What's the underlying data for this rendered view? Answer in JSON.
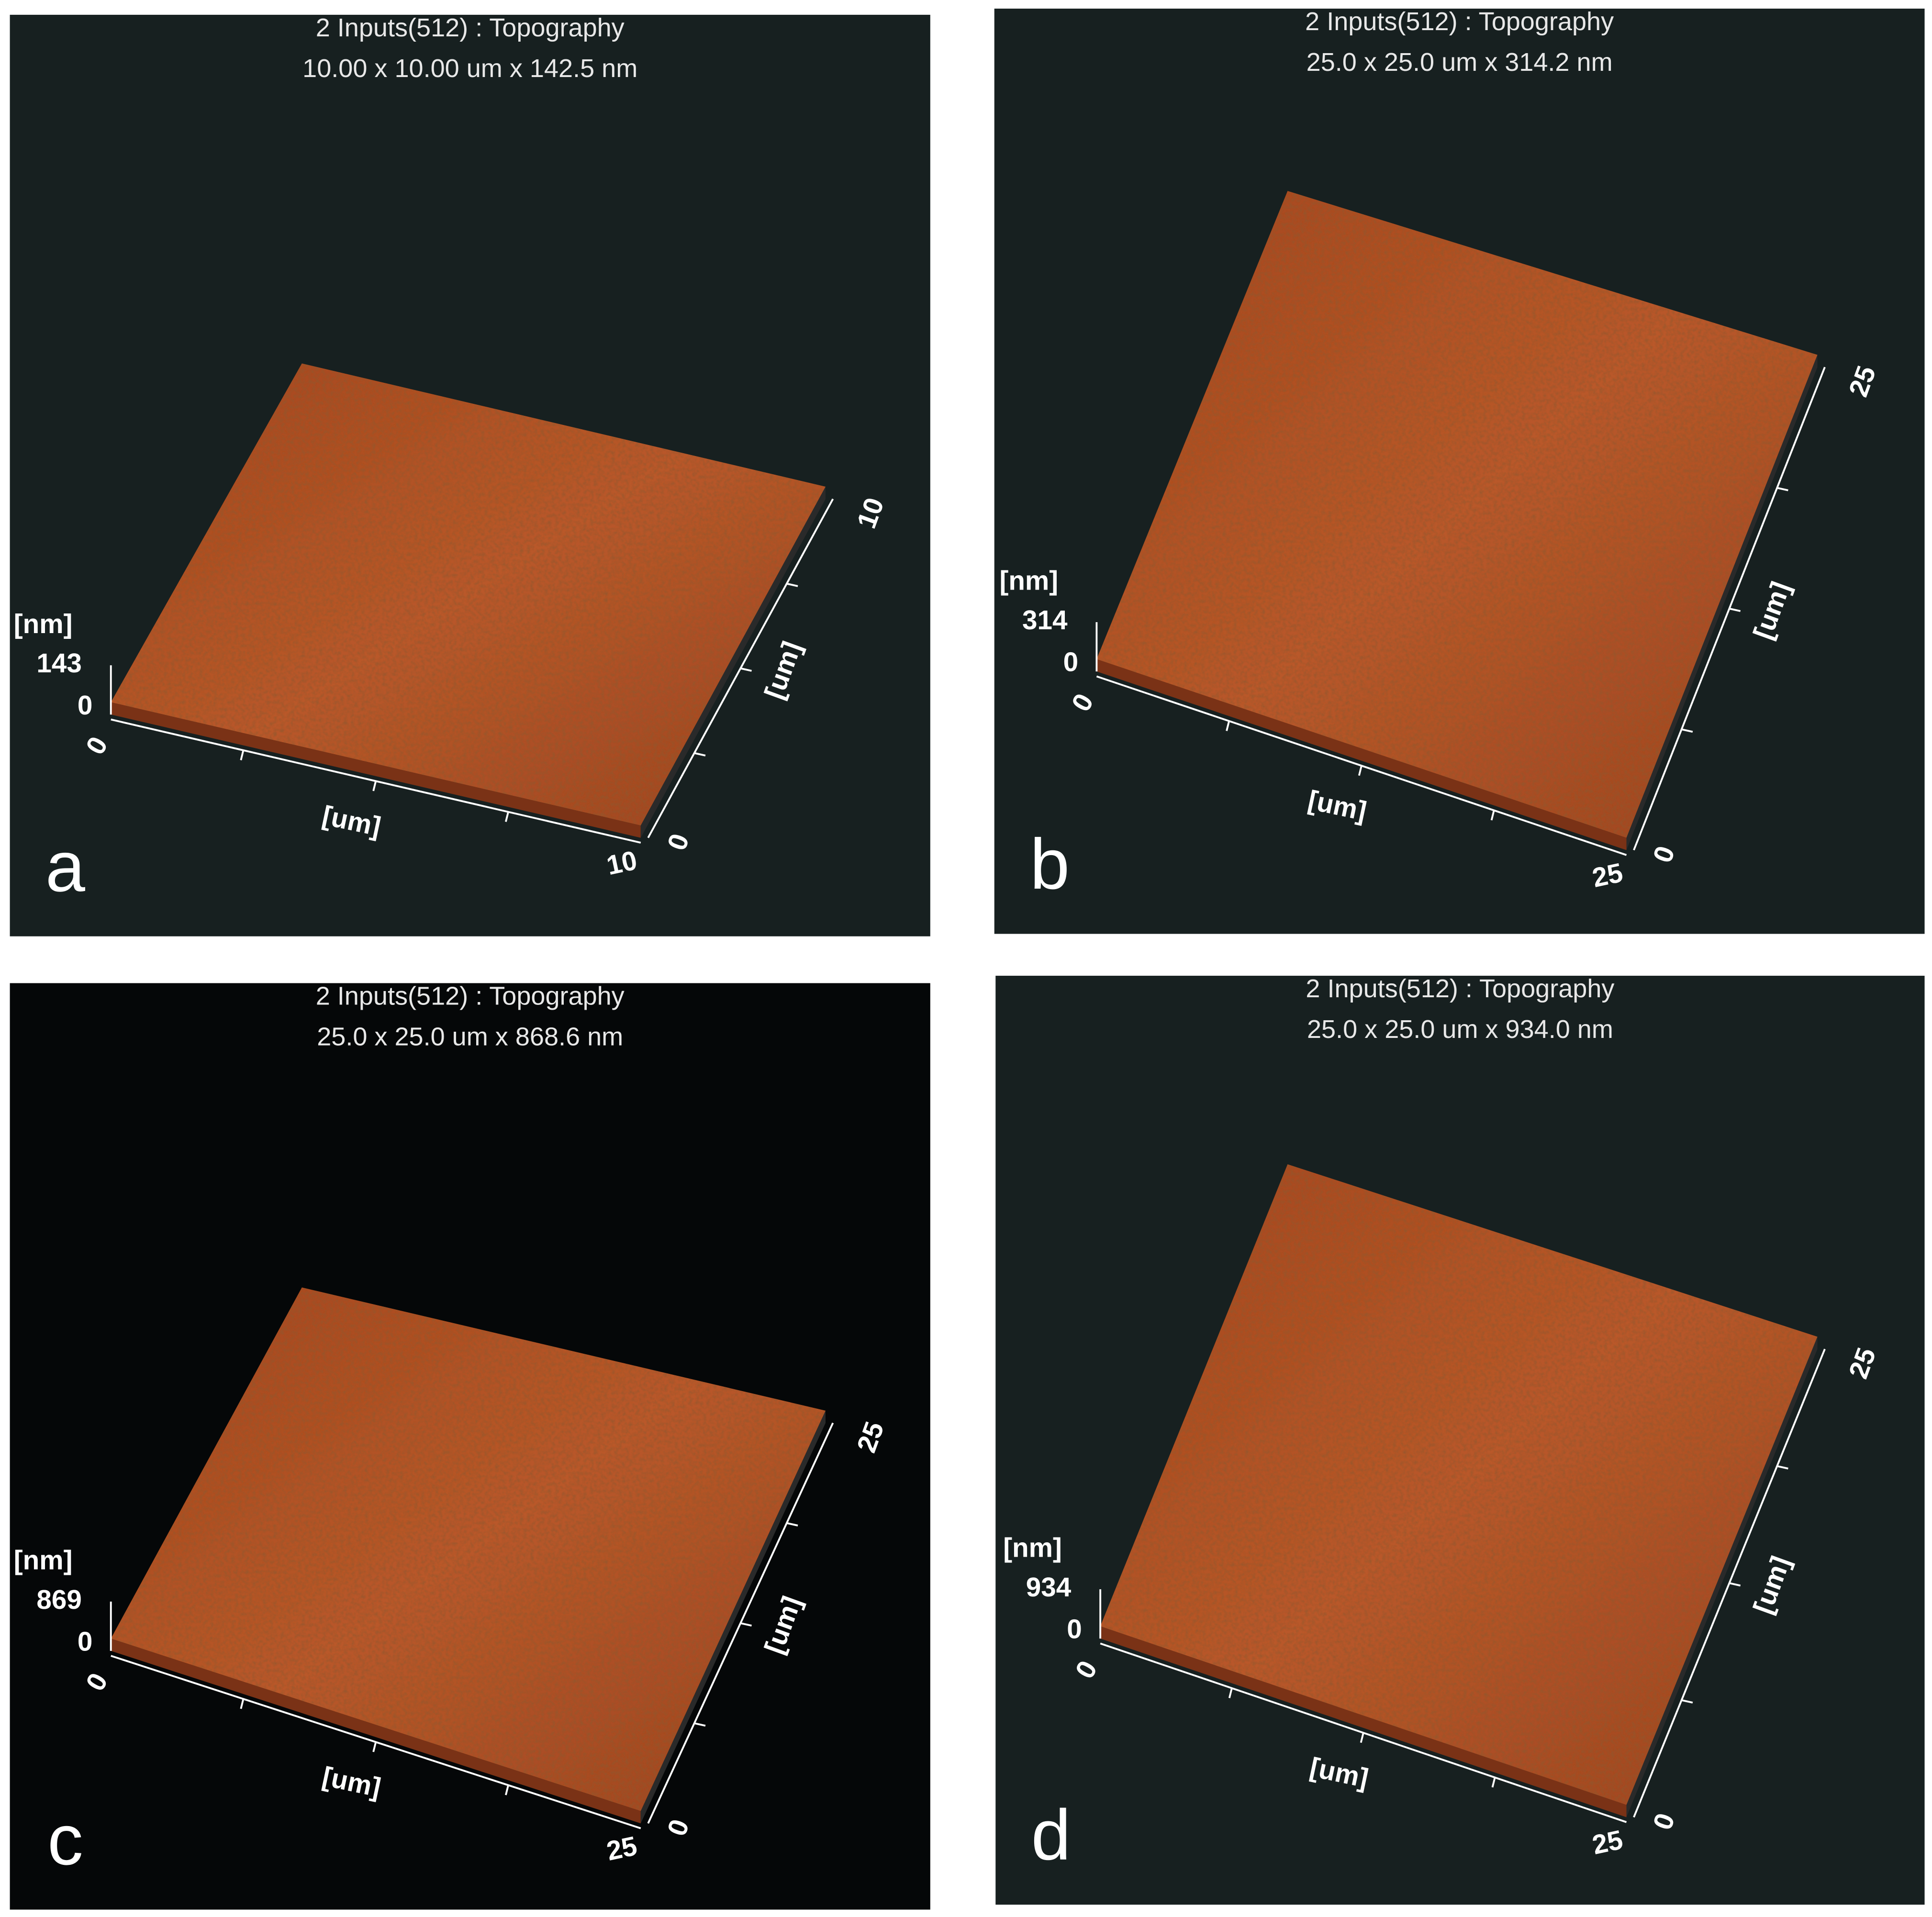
{
  "panels": [
    {
      "letter": "a",
      "title": "2 Inputs(512) : Topography",
      "subtitle": "10.00 x 10.00 um x 142.5 nm",
      "z_unit": "[nm]",
      "z_max": "143",
      "z_min": "0",
      "x_label": "[um]",
      "x_start": "0",
      "x_end": "10",
      "y_label": "[um]",
      "y_start": "0",
      "y_end": "10"
    },
    {
      "letter": "b",
      "title": "2 Inputs(512) : Topography",
      "subtitle": "25.0 x 25.0 um x 314.2 nm",
      "z_unit": "[nm]",
      "z_max": "314",
      "z_min": "0",
      "x_label": "[um]",
      "x_start": "0",
      "x_end": "25",
      "y_label": "[um]",
      "y_start": "0",
      "y_end": "25"
    },
    {
      "letter": "c",
      "title": "2 Inputs(512) : Topography",
      "subtitle": "25.0 x 25.0 um x 868.6 nm",
      "z_unit": "[nm]",
      "z_max": "869",
      "z_min": "0",
      "x_label": "[um]",
      "x_start": "0",
      "x_end": "25",
      "y_label": "[um]",
      "y_start": "0",
      "y_end": "25"
    },
    {
      "letter": "d",
      "title": "2 Inputs(512) : Topography",
      "subtitle": "25.0 x 25.0 um x 934.0 nm",
      "z_unit": "[nm]",
      "z_max": "934",
      "z_min": "0",
      "x_label": "[um]",
      "x_start": "0",
      "x_end": "25",
      "y_label": "[um]",
      "y_start": "0",
      "y_end": "25"
    }
  ]
}
